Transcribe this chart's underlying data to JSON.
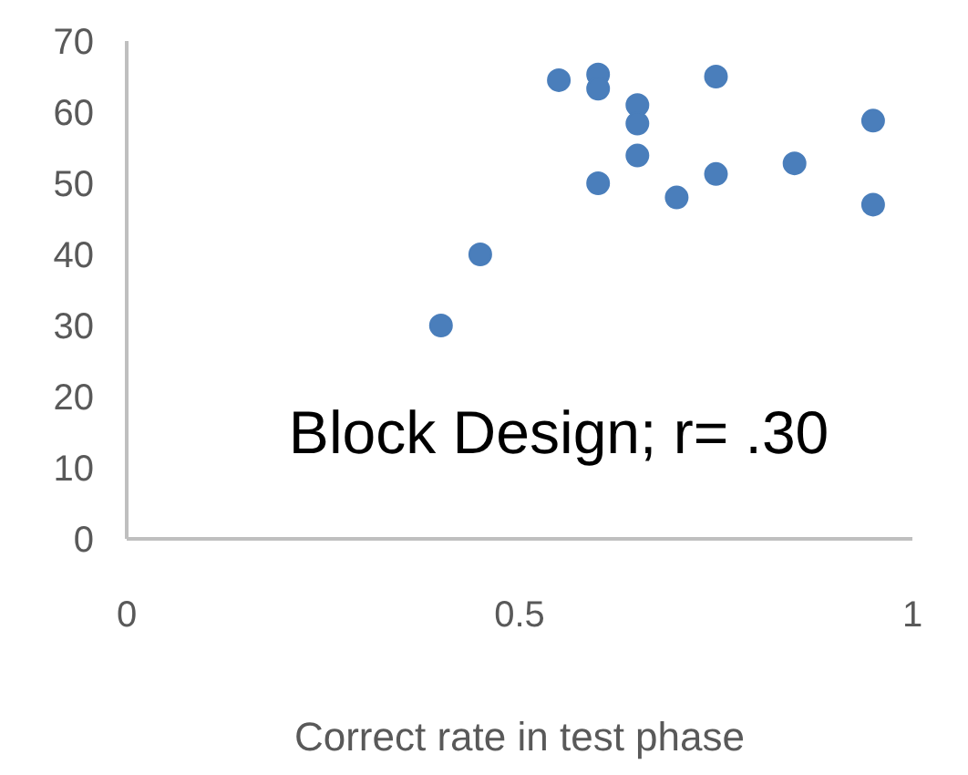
{
  "chart_data": {
    "type": "scatter",
    "xlabel": "Correct rate in test phase",
    "annotations": [
      "Block Design; r= .30"
    ],
    "x": [
      0.4,
      0.45,
      0.55,
      0.6,
      0.6,
      0.65,
      0.65,
      0.65,
      0.6,
      0.7,
      0.75,
      0.75,
      0.85,
      0.95,
      0.95
    ],
    "series": [
      {
        "color": "#4a7ebb",
        "values": [
          30,
          40,
          64.5,
          65.3,
          63.3,
          61,
          58.4,
          53.9,
          50,
          48,
          65,
          51.3,
          52.8,
          58.8,
          47
        ]
      }
    ],
    "xlim": [
      0,
      1
    ],
    "ylim": [
      0,
      70
    ],
    "xticks": [
      0,
      0.5,
      1
    ],
    "yticks": [
      0,
      10,
      20,
      30,
      40,
      50,
      60,
      70
    ],
    "grid": false,
    "marker": "circle"
  }
}
